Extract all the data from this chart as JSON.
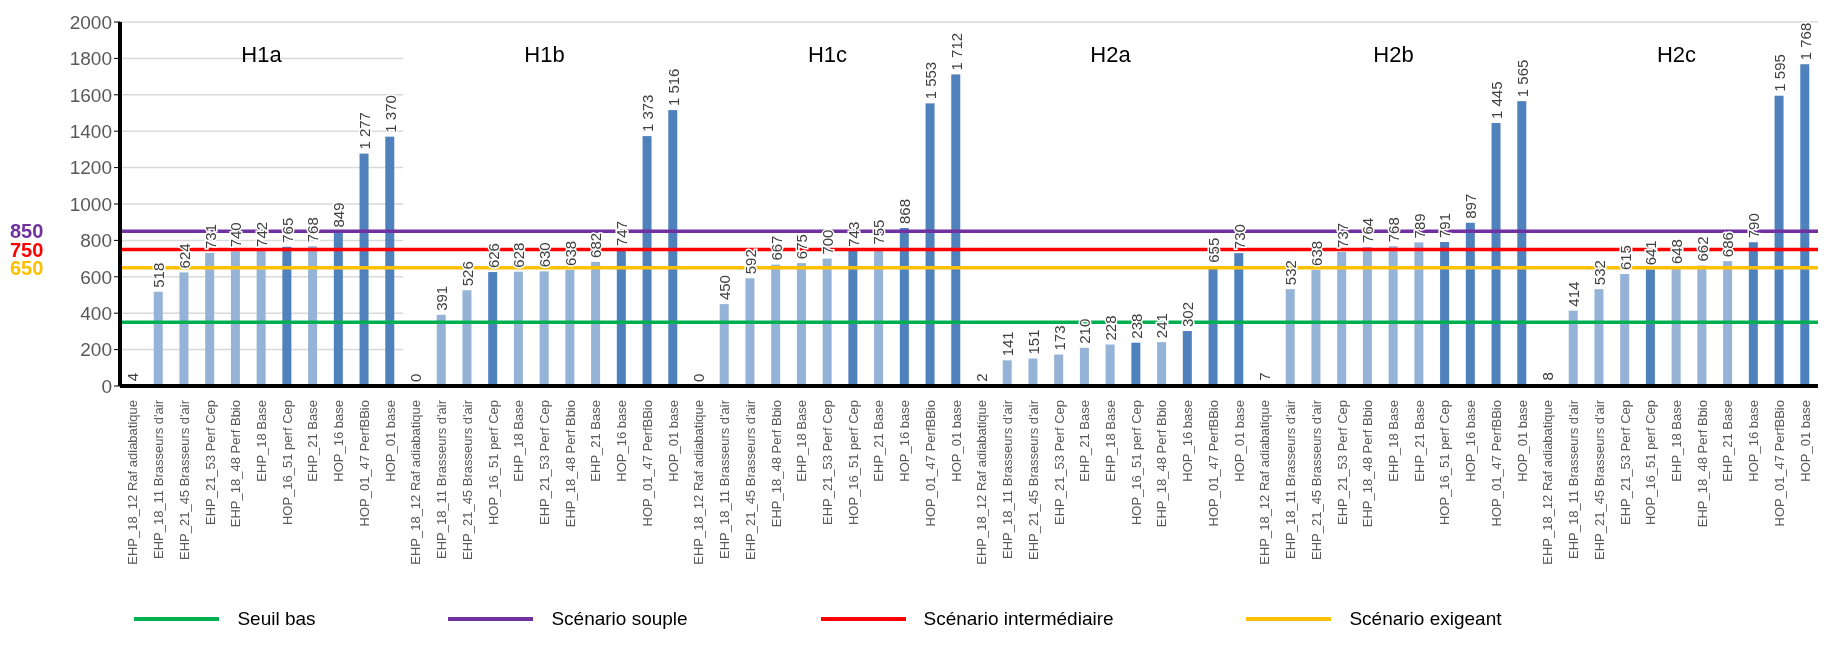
{
  "chart_data": [
    {
      "type": "bar",
      "title": "H1a",
      "categories": [
        "EHP_18_12 Raf adiabatique",
        "EHP_18_11 Brasseurs d'air",
        "EHP_21_45 Brasseurs d'air",
        "EHP_21_53 Perf Cep",
        "EHP_18_48 Perf Bbio",
        "EHP_18 Base",
        "HOP_16_51 perf Cep",
        "EHP_21 Base",
        "HOP_16 base",
        "HOP_01_47 PerfBBio",
        "HOP_01 base"
      ],
      "values": [
        4,
        518,
        624,
        731,
        740,
        742,
        765,
        768,
        849,
        1277,
        1370
      ],
      "value_labels": [
        "4",
        "518",
        "624",
        "731",
        "740",
        "742",
        "765",
        "768",
        "849",
        "1 277",
        "1 370"
      ],
      "colors": [
        "#95b3d7",
        "#95b3d7",
        "#95b3d7",
        "#95b3d7",
        "#95b3d7",
        "#95b3d7",
        "#4f81bd",
        "#95b3d7",
        "#4f81bd",
        "#4f81bd",
        "#4f81bd"
      ],
      "ylim": [
        0,
        2000
      ],
      "yticks": [
        0,
        200,
        400,
        600,
        800,
        1000,
        1200,
        1400,
        1600,
        1800,
        2000
      ],
      "grid": "y",
      "legend": "bottom",
      "ref_lines": [
        {
          "axis": "y",
          "value": 350,
          "label": "Seuil bas",
          "color": "#00b050"
        },
        {
          "axis": "y",
          "value": 850,
          "label": "Scénario souple",
          "color": "#7030a0"
        },
        {
          "axis": "y",
          "value": 750,
          "label": "Scénario intermédiaire",
          "color": "#ff0000"
        },
        {
          "axis": "y",
          "value": 650,
          "label": "Scénario exigeant",
          "color": "#ffc000"
        }
      ],
      "annotations": [
        "850",
        "750",
        "650"
      ]
    },
    {
      "type": "bar",
      "title": "H1b",
      "categories": [
        "EHP_18_12 Raf adiabatique",
        "EHP_18_11 Brasseurs d'air",
        "EHP_21_45 Brasseurs d'air",
        "HOP_16_51 perf Cep",
        "EHP_18 Base",
        "EHP_21_53 Perf Cep",
        "EHP_18_48 Perf Bbio",
        "EHP_21 Base",
        "HOP_16 base",
        "HOP_01_47 PerfBBio",
        "HOP_01 base"
      ],
      "values": [
        0,
        391,
        526,
        626,
        628,
        630,
        638,
        682,
        747,
        1373,
        1516
      ],
      "value_labels": [
        "0",
        "391",
        "526",
        "626",
        "628",
        "630",
        "638",
        "682",
        "747",
        "1 373",
        "1 516"
      ],
      "colors": [
        "#95b3d7",
        "#95b3d7",
        "#95b3d7",
        "#4f81bd",
        "#95b3d7",
        "#95b3d7",
        "#95b3d7",
        "#95b3d7",
        "#4f81bd",
        "#4f81bd",
        "#4f81bd"
      ],
      "ylim": [
        0,
        2000
      ],
      "yticks": [
        0,
        200,
        400,
        600,
        800,
        1000,
        1200,
        1400,
        1600,
        1800,
        2000
      ],
      "grid": "y",
      "tick_labels": "x",
      "ref_lines": [
        {
          "axis": "y",
          "value": 350,
          "color": "#00b050"
        },
        {
          "axis": "y",
          "value": 850,
          "color": "#7030a0"
        },
        {
          "axis": "y",
          "value": 750,
          "color": "#ff0000"
        },
        {
          "axis": "y",
          "value": 650,
          "color": "#ffc000"
        }
      ]
    },
    {
      "type": "bar",
      "title": "H1c",
      "categories": [
        "EHP_18_12 Raf adiabatique",
        "EHP_18_11 Brasseurs d'air",
        "EHP_21_45 Brasseurs d'air",
        "EHP_18_48 Perf Bbio",
        "EHP_18 Base",
        "EHP_21_53 Perf Cep",
        "HOP_16_51 perf Cep",
        "EHP_21 Base",
        "HOP_16 base",
        "HOP_01_47 PerfBBio",
        "HOP_01 base"
      ],
      "values": [
        0,
        450,
        592,
        667,
        675,
        700,
        743,
        755,
        868,
        1553,
        1712
      ],
      "value_labels": [
        "0",
        "450",
        "592",
        "667",
        "675",
        "700",
        "743",
        "755",
        "868",
        "1 553",
        "1 712"
      ],
      "colors": [
        "#95b3d7",
        "#95b3d7",
        "#95b3d7",
        "#95b3d7",
        "#95b3d7",
        "#95b3d7",
        "#4f81bd",
        "#95b3d7",
        "#4f81bd",
        "#4f81bd",
        "#4f81bd"
      ],
      "ylim": [
        0,
        2000
      ],
      "yticks": [
        0,
        200,
        400,
        600,
        800,
        1000,
        1200,
        1400,
        1600,
        1800,
        2000
      ],
      "grid": "y",
      "tick_labels": "x",
      "ref_lines": [
        {
          "axis": "y",
          "value": 350,
          "color": "#00b050"
        },
        {
          "axis": "y",
          "value": 850,
          "color": "#7030a0"
        },
        {
          "axis": "y",
          "value": 750,
          "color": "#ff0000"
        },
        {
          "axis": "y",
          "value": 650,
          "color": "#ffc000"
        }
      ]
    },
    {
      "type": "bar",
      "title": "H2a",
      "categories": [
        "EHP_18_12 Raf adiabatique",
        "EHP_18_11 Brasseurs d'air",
        "EHP_21_45 Brasseurs d'air",
        "EHP_21_53 Perf Cep",
        "EHP_21 Base",
        "EHP_18 Base",
        "HOP_16_51 perf Cep",
        "EHP_18_48 Perf Bbio",
        "HOP_16 base",
        "HOP_01_47 PerfBBio",
        "HOP_01 base"
      ],
      "values": [
        2,
        141,
        151,
        173,
        210,
        228,
        238,
        241,
        302,
        655,
        730
      ],
      "value_labels": [
        "2",
        "141",
        "151",
        "173",
        "210",
        "228",
        "238",
        "241",
        "302",
        "655",
        "730"
      ],
      "colors": [
        "#95b3d7",
        "#95b3d7",
        "#95b3d7",
        "#95b3d7",
        "#95b3d7",
        "#95b3d7",
        "#4f81bd",
        "#95b3d7",
        "#4f81bd",
        "#4f81bd",
        "#4f81bd"
      ],
      "ylim": [
        0,
        2000
      ],
      "yticks": [
        0,
        200,
        400,
        600,
        800,
        1000,
        1200,
        1400,
        1600,
        1800,
        2000
      ],
      "grid": "y",
      "tick_labels": "x",
      "ref_lines": [
        {
          "axis": "y",
          "value": 350,
          "color": "#00b050"
        },
        {
          "axis": "y",
          "value": 850,
          "color": "#7030a0"
        },
        {
          "axis": "y",
          "value": 750,
          "color": "#ff0000"
        },
        {
          "axis": "y",
          "value": 650,
          "color": "#ffc000"
        }
      ]
    },
    {
      "type": "bar",
      "title": "H2b",
      "categories": [
        "EHP_18_12 Raf adiabatique",
        "EHP_18_11 Brasseurs d'air",
        "EHP_21_45 Brasseurs d'air",
        "EHP_21_53 Perf Cep",
        "EHP_18_48 Perf Bbio",
        "EHP_18 Base",
        "EHP_21 Base",
        "HOP_16_51 perf Cep",
        "HOP_16 base",
        "HOP_01_47 PerfBBio",
        "HOP_01 base"
      ],
      "values": [
        7,
        532,
        638,
        737,
        764,
        768,
        789,
        791,
        897,
        1445,
        1565
      ],
      "value_labels": [
        "7",
        "532",
        "638",
        "737",
        "764",
        "768",
        "789",
        "791",
        "897",
        "1 445",
        "1 565"
      ],
      "colors": [
        "#95b3d7",
        "#95b3d7",
        "#95b3d7",
        "#95b3d7",
        "#95b3d7",
        "#95b3d7",
        "#95b3d7",
        "#4f81bd",
        "#4f81bd",
        "#4f81bd",
        "#4f81bd"
      ],
      "ylim": [
        0,
        2000
      ],
      "yticks": [
        0,
        200,
        400,
        600,
        800,
        1000,
        1200,
        1400,
        1600,
        1800,
        2000
      ],
      "grid": "y",
      "tick_labels": "x",
      "ref_lines": [
        {
          "axis": "y",
          "value": 350,
          "color": "#00b050"
        },
        {
          "axis": "y",
          "value": 850,
          "color": "#7030a0"
        },
        {
          "axis": "y",
          "value": 750,
          "color": "#ff0000"
        },
        {
          "axis": "y",
          "value": 650,
          "color": "#ffc000"
        }
      ]
    },
    {
      "type": "bar",
      "title": "H2c",
      "categories": [
        "EHP_18_12 Raf adiabatique",
        "EHP_18_11 Brasseurs d'air",
        "EHP_21_45 Brasseurs d'air",
        "EHP_21_53 Perf Cep",
        "HOP_16_51 perf Cep",
        "EHP_18 Base",
        "EHP_18_48 Perf Bbio",
        "EHP_21 Base",
        "HOP_16 base",
        "HOP_01_47 PerfBBio",
        "HOP_01 base"
      ],
      "values": [
        8,
        414,
        532,
        615,
        641,
        648,
        662,
        686,
        790,
        1595,
        1768
      ],
      "value_labels": [
        "8",
        "414",
        "532",
        "615",
        "641",
        "648",
        "662",
        "686",
        "790",
        "1 595",
        "1 768"
      ],
      "colors": [
        "#95b3d7",
        "#95b3d7",
        "#95b3d7",
        "#95b3d7",
        "#4f81bd",
        "#95b3d7",
        "#95b3d7",
        "#95b3d7",
        "#4f81bd",
        "#4f81bd",
        "#4f81bd"
      ],
      "ylim": [
        0,
        2000
      ],
      "yticks": [
        0,
        200,
        400,
        600,
        800,
        1000,
        1200,
        1400,
        1600,
        1800,
        2000
      ],
      "grid": "y",
      "tick_labels": "x",
      "ref_lines": [
        {
          "axis": "y",
          "value": 350,
          "color": "#00b050"
        },
        {
          "axis": "y",
          "value": 850,
          "color": "#7030a0"
        },
        {
          "axis": "y",
          "value": 750,
          "color": "#ff0000"
        },
        {
          "axis": "y",
          "value": 650,
          "color": "#ffc000"
        }
      ]
    }
  ]
}
